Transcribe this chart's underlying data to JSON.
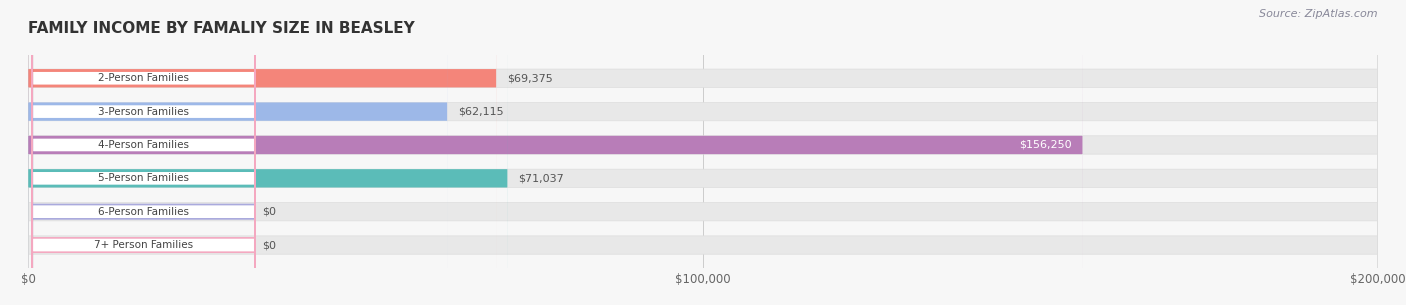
{
  "title": "FAMILY INCOME BY FAMALIY SIZE IN BEASLEY",
  "source": "Source: ZipAtlas.com",
  "categories": [
    "2-Person Families",
    "3-Person Families",
    "4-Person Families",
    "5-Person Families",
    "6-Person Families",
    "7+ Person Families"
  ],
  "values": [
    69375,
    62115,
    156250,
    71037,
    0,
    0
  ],
  "bar_colors": [
    "#f4857a",
    "#9db8e8",
    "#b87db8",
    "#5bbcb8",
    "#aaaadd",
    "#f4a8c0"
  ],
  "bar_bg_color": "#f0f0f0",
  "label_bg_color": "#ffffff",
  "xlim": [
    0,
    200000
  ],
  "xticks": [
    0,
    100000,
    200000
  ],
  "xtick_labels": [
    "$0",
    "$100,000",
    "$200,000"
  ],
  "value_label_color_inside": "#ffffff",
  "value_label_color_outside": "#555555",
  "title_color": "#333333",
  "source_color": "#888899",
  "background_color": "#f7f7f7",
  "bar_height": 0.55,
  "figsize": [
    14.06,
    3.05
  ],
  "dpi": 100
}
